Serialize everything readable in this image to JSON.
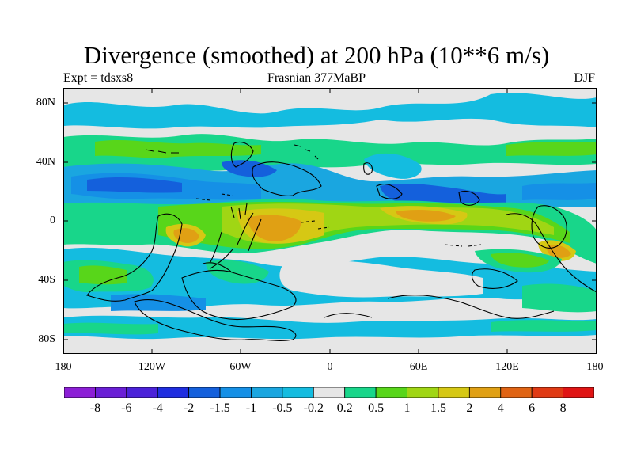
{
  "title": "Divergence (smoothed) at 200 hPa (10**6 m/s)",
  "left_subtitle": "Expt = tdsxs8",
  "center_subtitle": "Frasnian 377MaBP",
  "right_subtitle": "DJF",
  "lat_labels": [
    "80N",
    "40N",
    "0",
    "40S",
    "80S"
  ],
  "lon_labels": [
    "180",
    "120W",
    "60W",
    "0",
    "60E",
    "120E",
    "180"
  ],
  "colorbar": {
    "labels": [
      "-8",
      "-6",
      "-4",
      "-2",
      "-1.5",
      "-1",
      "-0.5",
      "-0.2",
      "0.2",
      "0.5",
      "1",
      "1.5",
      "2",
      "4",
      "6",
      "8"
    ],
    "colors": [
      "#8c1fd6",
      "#6a1fd6",
      "#4b22d9",
      "#1f2ee0",
      "#1460dc",
      "#1590e6",
      "#1aa6e0",
      "#14bce0",
      "#e6e6e6",
      "#18d68a",
      "#58d61a",
      "#a0d614",
      "#d6c814",
      "#e0a014",
      "#e06414",
      "#e03a14",
      "#e01414"
    ]
  },
  "colors": {
    "neutral": "#e6e6e6",
    "coast": "#000000"
  }
}
